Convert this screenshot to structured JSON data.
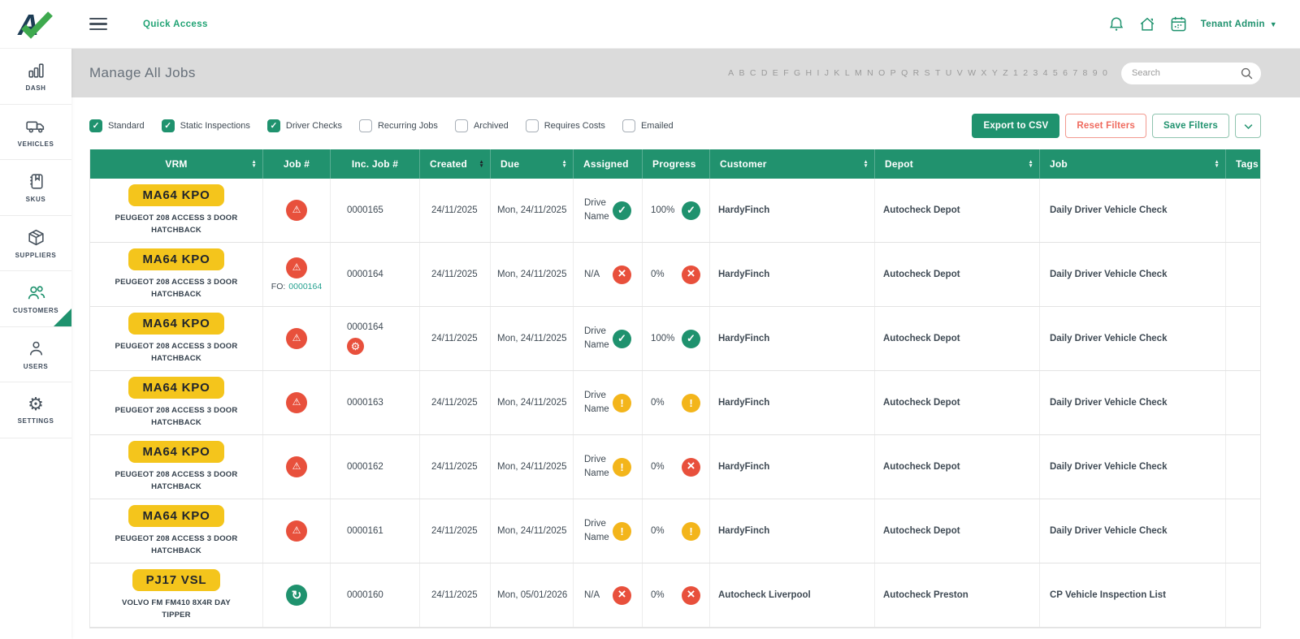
{
  "topbar": {
    "quick_access": "Quick Access",
    "user_menu": "Tenant Admin",
    "icons": [
      "bell-icon",
      "home-icon",
      "calendar-icon"
    ]
  },
  "sidebar": {
    "items": [
      {
        "label": "DASH",
        "icon": "bar-chart-icon",
        "active": false
      },
      {
        "label": "VEHICLES",
        "icon": "truck-icon",
        "active": false
      },
      {
        "label": "SKUS",
        "icon": "notebook-icon",
        "active": false
      },
      {
        "label": "SUPPLIERS",
        "icon": "box-icon",
        "active": false
      },
      {
        "label": "CUSTOMERS",
        "icon": "people-icon",
        "active": true
      },
      {
        "label": "USERS",
        "icon": "person-icon",
        "active": false
      },
      {
        "label": "SETTINGS",
        "icon": "gear-icon",
        "active": false
      }
    ]
  },
  "header": {
    "title": "Manage All Jobs",
    "alphabet": [
      "A",
      "B",
      "C",
      "D",
      "E",
      "F",
      "G",
      "H",
      "I",
      "J",
      "K",
      "L",
      "M",
      "N",
      "O",
      "P",
      "Q",
      "R",
      "S",
      "T",
      "U",
      "V",
      "W",
      "X",
      "Y",
      "Z",
      "1",
      "2",
      "3",
      "4",
      "5",
      "6",
      "7",
      "8",
      "9",
      "0"
    ],
    "search_placeholder": "Search"
  },
  "filters": {
    "checkboxes": [
      {
        "label": "Standard",
        "checked": true
      },
      {
        "label": "Static Inspections",
        "checked": true
      },
      {
        "label": "Driver Checks",
        "checked": true
      },
      {
        "label": "Recurring Jobs",
        "checked": false
      },
      {
        "label": "Archived",
        "checked": false
      },
      {
        "label": "Requires Costs",
        "checked": false
      },
      {
        "label": "Emailed",
        "checked": false
      }
    ],
    "buttons": {
      "export": "Export to CSV",
      "reset": "Reset Filters",
      "save": "Save Filters"
    }
  },
  "table": {
    "columns": [
      {
        "label": "VRM",
        "sortable": true
      },
      {
        "label": "Job #",
        "sortable": false
      },
      {
        "label": "Inc. Job #",
        "sortable": false
      },
      {
        "label": "Created",
        "sortable": true,
        "sort_active": true
      },
      {
        "label": "Due",
        "sortable": true
      },
      {
        "label": "Assigned",
        "sortable": false
      },
      {
        "label": "Progress",
        "sortable": false
      },
      {
        "label": "Customer",
        "sortable": true
      },
      {
        "label": "Depot",
        "sortable": true
      },
      {
        "label": "Job",
        "sortable": true
      },
      {
        "label": "Tags",
        "sortable": false
      }
    ],
    "rows": [
      {
        "plate": "MA64 KPO",
        "vehicle": "PEUGEOT 208 ACCESS 3 DOOR HATCHBACK",
        "job_icon": "warning",
        "inc_job": "0000165",
        "created": "24/11/2025",
        "due": "Mon, 24/11/2025",
        "assigned": "Drive Name",
        "assigned_status": "success",
        "progress": "100%",
        "progress_status": "success",
        "customer": "HardyFinch",
        "depot": "Autocheck Depot",
        "job": "Daily Driver Vehicle Check",
        "tags": ""
      },
      {
        "plate": "MA64 KPO",
        "vehicle": "PEUGEOT 208 ACCESS 3 DOOR HATCHBACK",
        "job_icon": "warning",
        "fo_prefix": "FO:",
        "fo_number": "0000164",
        "inc_job": "0000164",
        "created": "24/11/2025",
        "due": "Mon, 24/11/2025",
        "assigned": "N/A",
        "assigned_status": "fail",
        "progress": "0%",
        "progress_status": "fail",
        "customer": "HardyFinch",
        "depot": "Autocheck Depot",
        "job": "Daily Driver Vehicle Check",
        "tags": ""
      },
      {
        "plate": "MA64 KPO",
        "vehicle": "PEUGEOT 208 ACCESS 3 DOOR HATCHBACK",
        "job_icon": "warning",
        "has_gear": true,
        "inc_job": "0000164",
        "created": "24/11/2025",
        "due": "Mon, 24/11/2025",
        "assigned": "Drive Name",
        "assigned_status": "success",
        "progress": "100%",
        "progress_status": "success",
        "customer": "HardyFinch",
        "depot": "Autocheck Depot",
        "job": "Daily Driver Vehicle Check",
        "tags": ""
      },
      {
        "plate": "MA64 KPO",
        "vehicle": "PEUGEOT 208 ACCESS 3 DOOR HATCHBACK",
        "job_icon": "warning",
        "inc_job": "0000163",
        "created": "24/11/2025",
        "due": "Mon, 24/11/2025",
        "assigned": "Drive Name",
        "assigned_status": "warn",
        "progress": "0%",
        "progress_status": "warn",
        "customer": "HardyFinch",
        "depot": "Autocheck Depot",
        "job": "Daily Driver Vehicle Check",
        "tags": ""
      },
      {
        "plate": "MA64 KPO",
        "vehicle": "PEUGEOT 208 ACCESS 3 DOOR HATCHBACK",
        "job_icon": "warning",
        "inc_job": "0000162",
        "created": "24/11/2025",
        "due": "Mon, 24/11/2025",
        "assigned": "Drive Name",
        "assigned_status": "warn",
        "progress": "0%",
        "progress_status": "fail",
        "customer": "HardyFinch",
        "depot": "Autocheck Depot",
        "job": "Daily Driver Vehicle Check",
        "tags": ""
      },
      {
        "plate": "MA64 KPO",
        "vehicle": "PEUGEOT 208 ACCESS 3 DOOR HATCHBACK",
        "job_icon": "warning",
        "inc_job": "0000161",
        "created": "24/11/2025",
        "due": "Mon, 24/11/2025",
        "assigned": "Drive Name",
        "assigned_status": "warn",
        "progress": "0%",
        "progress_status": "warn",
        "customer": "HardyFinch",
        "depot": "Autocheck Depot",
        "job": "Daily Driver Vehicle Check",
        "tags": ""
      },
      {
        "plate": "PJ17 VSL",
        "vehicle": "VOLVO FM FM410 8X4R DAY TIPPER",
        "job_icon": "recurring",
        "inc_job": "0000160",
        "created": "24/11/2025",
        "due": "Mon, 05/01/2026",
        "assigned": "N/A",
        "assigned_status": "fail",
        "progress": "0%",
        "progress_status": "fail",
        "customer": "Autocheck Liverpool",
        "depot": "Autocheck Preston",
        "job": "CP Vehicle Inspection List",
        "tags": ""
      }
    ]
  },
  "colors": {
    "accent_green": "#1F926E",
    "status_red": "#E8503C",
    "status_yellow": "#F3B51B",
    "plate_yellow": "#F4C51C",
    "link_teal": "#23A08F",
    "reset_red": "#EF6A5E"
  }
}
